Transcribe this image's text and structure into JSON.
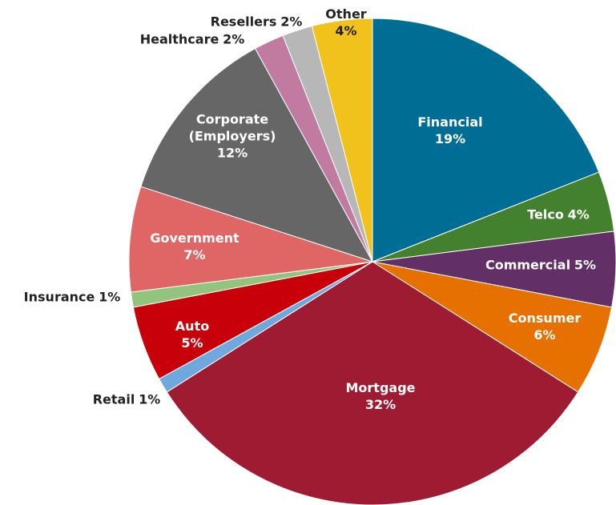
{
  "chart_data": {
    "type": "pie",
    "categories": [
      "Financial",
      "Telco",
      "Commercial",
      "Consumer",
      "Mortgage",
      "Retail",
      "Auto",
      "Insurance",
      "Government",
      "Corporate (Employers)",
      "Healthcare",
      "Resellers",
      "Other"
    ],
    "values": [
      19,
      4,
      5,
      6,
      32,
      1,
      5,
      1,
      7,
      12,
      2,
      2,
      4
    ],
    "value_labels": [
      "19%",
      "4%",
      "5%",
      "6%",
      "32%",
      "1%",
      "5%",
      "1%",
      "7%",
      "12%",
      "2%",
      "2%",
      "4%"
    ],
    "colors": [
      "#006e94",
      "#44812f",
      "#622f66",
      "#e77100",
      "#9e1b32",
      "#6fa8dc",
      "#c8000a",
      "#93c47d",
      "#e06666",
      "#666666",
      "#c27ba0",
      "#b7b7b7",
      "#f1c21b"
    ]
  }
}
